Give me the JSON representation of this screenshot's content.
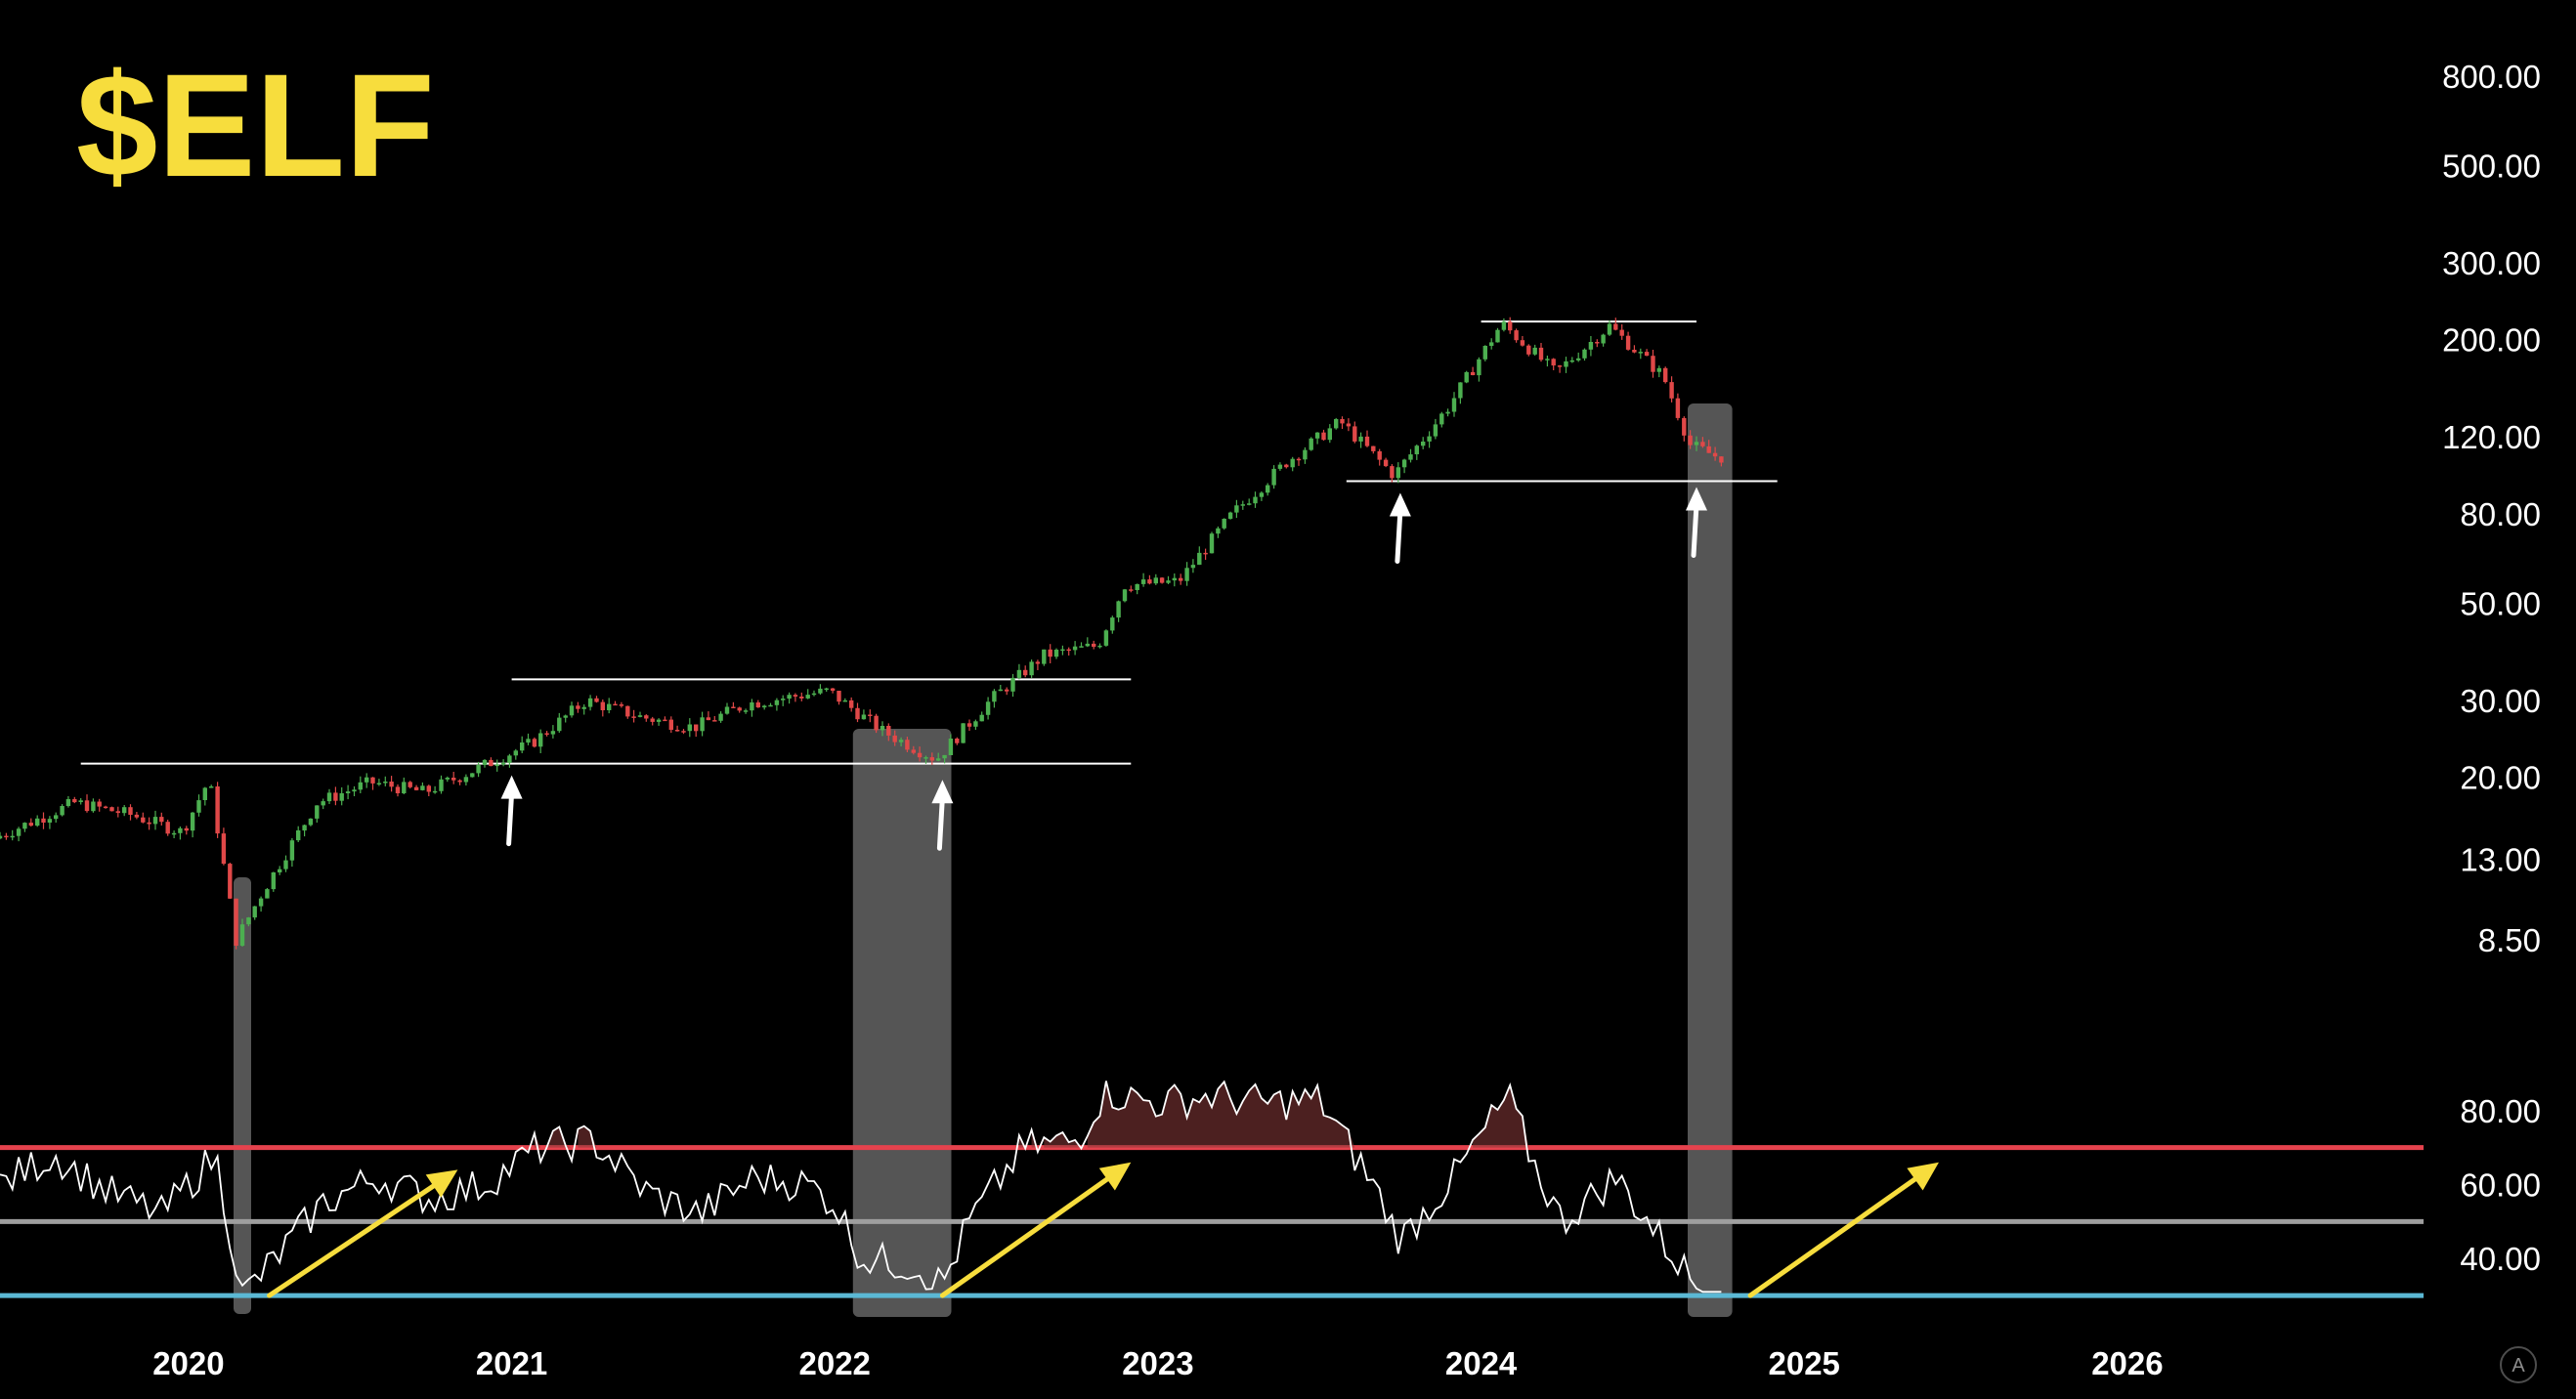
{
  "ticker": "$ELF",
  "colors": {
    "background": "#000000",
    "ticker": "#f7dd3d",
    "candle_up": "#4caf50",
    "candle_down": "#e04848",
    "rsi_line": "#ffffff",
    "rsi_upper_band": "#e5424d",
    "rsi_mid_band": "#9e9e9e",
    "rsi_lower_band": "#5bb8d4",
    "highlight": "#9a9a9a",
    "arrow_white": "#ffffff",
    "arrow_yellow": "#f7dd3d"
  },
  "badge": "A",
  "chart_data": {
    "type": "candlestick",
    "x_axis": {
      "ticks": [
        "2020",
        "2021",
        "2022",
        "2023",
        "2024",
        "2025",
        "2026"
      ],
      "range": [
        "2019-06",
        "2026-12"
      ]
    },
    "price_axis": {
      "scale": "log",
      "ticks": [
        "800.00",
        "500.00",
        "300.00",
        "200.00",
        "120.00",
        "80.00",
        "50.00",
        "30.00",
        "20.00",
        "13.00",
        "8.50"
      ],
      "range": [
        7,
        900
      ]
    },
    "price_path": [
      [
        "2019-06",
        14.5
      ],
      [
        "2019-09",
        17.5
      ],
      [
        "2019-11",
        16.5
      ],
      [
        "2020-01",
        15.0
      ],
      [
        "2020-02",
        19.8
      ],
      [
        "2020-03",
        8.5
      ],
      [
        "2020-04",
        11.0
      ],
      [
        "2020-06",
        17.5
      ],
      [
        "2020-08",
        19.5
      ],
      [
        "2020-10",
        18.5
      ],
      [
        "2020-12",
        21.0
      ],
      [
        "2021-02",
        24.0
      ],
      [
        "2021-04",
        30.0
      ],
      [
        "2021-06",
        27.5
      ],
      [
        "2021-08",
        26.0
      ],
      [
        "2021-10",
        29.5
      ],
      [
        "2022-01",
        31.5
      ],
      [
        "2022-03",
        25.5
      ],
      [
        "2022-05",
        22.0
      ],
      [
        "2022-07",
        30.0
      ],
      [
        "2022-09",
        38.0
      ],
      [
        "2022-11",
        40.0
      ],
      [
        "2022-12",
        55.0
      ],
      [
        "2023-02",
        56.0
      ],
      [
        "2023-04",
        80.0
      ],
      [
        "2023-06",
        105.0
      ],
      [
        "2023-08",
        130.0
      ],
      [
        "2023-10",
        98.0
      ],
      [
        "2023-12",
        140.0
      ],
      [
        "2024-02",
        218.0
      ],
      [
        "2024-04",
        168.0
      ],
      [
        "2024-06",
        215.0
      ],
      [
        "2024-08",
        165.0
      ],
      [
        "2024-09",
        115.0
      ],
      [
        "2024-10",
        108.0
      ]
    ],
    "horizontal_levels": [
      {
        "price": 21.5,
        "from": "2019-09",
        "to": "2022-12"
      },
      {
        "price": 33.5,
        "from": "2021-01",
        "to": "2022-12"
      },
      {
        "price": 220.0,
        "from": "2024-01",
        "to": "2024-09"
      },
      {
        "price": 95.0,
        "from": "2023-08",
        "to": "2024-12"
      }
    ],
    "highlight_periods": [
      {
        "from": "2020-03",
        "to": "2020-03"
      },
      {
        "from": "2022-02",
        "to": "2022-05"
      },
      {
        "from": "2024-09",
        "to": "2024-10"
      }
    ],
    "rsi": {
      "axis_ticks": [
        "80.00",
        "60.00",
        "40.00"
      ],
      "range": [
        25,
        95
      ],
      "bands": {
        "upper": 70,
        "middle": 50,
        "lower": 30
      },
      "path": [
        [
          "2019-06",
          60
        ],
        [
          "2019-08",
          68
        ],
        [
          "2019-10",
          58
        ],
        [
          "2019-12",
          52
        ],
        [
          "2020-02",
          68
        ],
        [
          "2020-03",
          30
        ],
        [
          "2020-04",
          38
        ],
        [
          "2020-06",
          55
        ],
        [
          "2020-08",
          62
        ],
        [
          "2020-10",
          56
        ],
        [
          "2020-12",
          60
        ],
        [
          "2021-02",
          70
        ],
        [
          "2021-04",
          72
        ],
        [
          "2021-06",
          58
        ],
        [
          "2021-08",
          52
        ],
        [
          "2021-10",
          62
        ],
        [
          "2021-12",
          60
        ],
        [
          "2022-01",
          55
        ],
        [
          "2022-02",
          40
        ],
        [
          "2022-04",
          38
        ],
        [
          "2022-05",
          33
        ],
        [
          "2022-06",
          50
        ],
        [
          "2022-08",
          70
        ],
        [
          "2022-10",
          72
        ],
        [
          "2022-11",
          85
        ],
        [
          "2023-01",
          82
        ],
        [
          "2023-03",
          84
        ],
        [
          "2023-05",
          82
        ],
        [
          "2023-07",
          83
        ],
        [
          "2023-09",
          60
        ],
        [
          "2023-10",
          45
        ],
        [
          "2023-12",
          62
        ],
        [
          "2024-02",
          84
        ],
        [
          "2024-03",
          65
        ],
        [
          "2024-04",
          50
        ],
        [
          "2024-06",
          62
        ],
        [
          "2024-08",
          42
        ],
        [
          "2024-09",
          33
        ],
        [
          "2024-10",
          32
        ]
      ]
    },
    "annotations": {
      "white_arrows": [
        {
          "date": "2021-01",
          "price": 21.5
        },
        {
          "date": "2022-05",
          "price": 21.0
        },
        {
          "date": "2023-10",
          "price": 95.0
        },
        {
          "date": "2024-09",
          "price": 98.0
        }
      ],
      "yellow_arrows": [
        {
          "from": [
            "2020-04",
            30
          ],
          "to": [
            "2020-11",
            64
          ]
        },
        {
          "from": [
            "2022-05",
            30
          ],
          "to": [
            "2022-12",
            66
          ]
        },
        {
          "from": [
            "2024-11",
            30
          ],
          "to": [
            "2025-06",
            66
          ]
        }
      ]
    }
  }
}
